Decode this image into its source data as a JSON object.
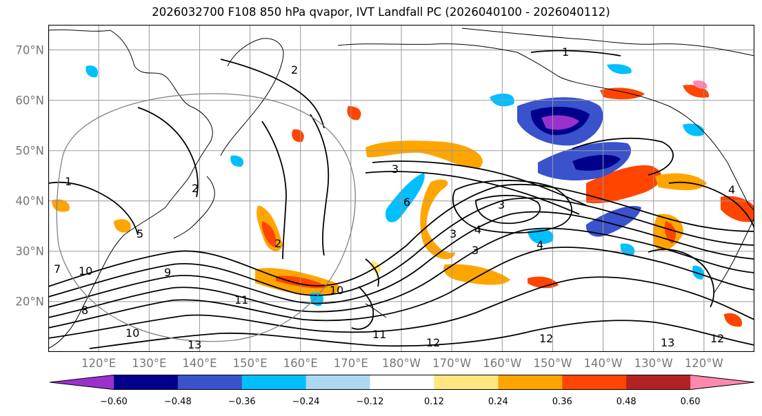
{
  "title": "2026032700 F108 850 hPa qvapor, IVT Landfall PC (2026040100 - 2026040112)",
  "map": {
    "projection": "cylindrical",
    "lat_range": [
      10,
      75
    ],
    "lon_range": [
      110,
      250
    ],
    "lat_labels": [
      "20°N",
      "30°N",
      "40°N",
      "50°N",
      "60°N",
      "70°N"
    ],
    "lat_values": [
      20,
      30,
      40,
      50,
      60,
      70
    ],
    "lon_labels": [
      "120°E",
      "130°E",
      "140°E",
      "150°E",
      "160°E",
      "170°E",
      "180°W",
      "170°W",
      "160°W",
      "150°W",
      "140°W",
      "130°W",
      "120°W"
    ],
    "lon_values": [
      120,
      130,
      140,
      150,
      160,
      170,
      180,
      190,
      200,
      210,
      220,
      230,
      240
    ],
    "contour_labels": [
      "1",
      "1",
      "2",
      "2",
      "2",
      "3",
      "3",
      "3",
      "3",
      "4",
      "4",
      "4",
      "5",
      "6",
      "7",
      "8",
      "9",
      "10",
      "10",
      "10",
      "11",
      "11",
      "12",
      "12",
      "12",
      "13",
      "13"
    ],
    "colors": {
      "coast": "#000000",
      "grid": "#999999",
      "contour": "#000000",
      "circle": "#808080"
    }
  },
  "colorbar": {
    "colors": [
      "#9932cc",
      "#00008b",
      "#3a52cc",
      "#00bfff",
      "#add8f4",
      "#ffffff",
      "#ffe680",
      "#ffa500",
      "#ff4500",
      "#b22222",
      "#ff88b0"
    ],
    "tick_labels": [
      "−0.60",
      "−0.48",
      "−0.36",
      "−0.24",
      "−0.12",
      "0.12",
      "0.24",
      "0.36",
      "0.48",
      "0.60"
    ],
    "tick_values": [
      -0.6,
      -0.48,
      -0.36,
      -0.24,
      -0.12,
      0.12,
      0.24,
      0.36,
      0.48,
      0.6
    ],
    "bounds": [
      -0.72,
      -0.6,
      -0.48,
      -0.36,
      -0.24,
      -0.12,
      0.12,
      0.24,
      0.36,
      0.48,
      0.6,
      0.72
    ]
  }
}
